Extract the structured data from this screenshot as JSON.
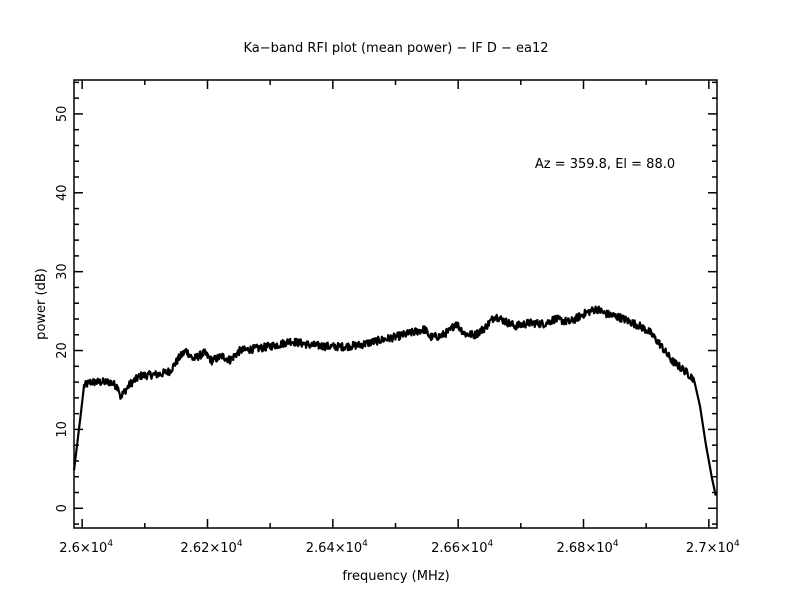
{
  "chart_data": {
    "type": "line",
    "title": "Ka−band RFI plot (mean power) − IF D − ea12",
    "xlabel": "frequency (MHz)",
    "ylabel": "power (dB)",
    "annotation": "Az = 359.8, El = 88.0",
    "xlim": [
      25987,
      27013
    ],
    "ylim": [
      -2.5,
      54.3
    ],
    "grid": false,
    "x_ticks": [
      {
        "value": 26000,
        "mant": "2.6",
        "exp": "4"
      },
      {
        "value": 26200,
        "mant": "2.62",
        "exp": "4"
      },
      {
        "value": 26400,
        "mant": "2.64",
        "exp": "4"
      },
      {
        "value": 26600,
        "mant": "2.66",
        "exp": "4"
      },
      {
        "value": 26800,
        "mant": "2.68",
        "exp": "4"
      },
      {
        "value": 27000,
        "mant": "2.7",
        "exp": "4"
      }
    ],
    "y_ticks": [
      {
        "value": 0,
        "label": "0"
      },
      {
        "value": 10,
        "label": "10"
      },
      {
        "value": 20,
        "label": "20"
      },
      {
        "value": 30,
        "label": "30"
      },
      {
        "value": 40,
        "label": "40"
      },
      {
        "value": 50,
        "label": "50"
      }
    ],
    "series": [
      {
        "name": "mean power",
        "color": "#000000",
        "x": [
          25987,
          25997,
          26003,
          26013,
          26045,
          26057,
          26061,
          26077,
          26093,
          26124,
          26140,
          26156,
          26166,
          26177,
          26195,
          26207,
          26223,
          26236,
          26252,
          26284,
          26316,
          26332,
          26364,
          26396,
          26419,
          26443,
          26475,
          26499,
          26523,
          26547,
          26555,
          26571,
          26587,
          26596,
          26611,
          26627,
          26643,
          26659,
          26675,
          26691,
          26714,
          26738,
          26754,
          26778,
          26802,
          26821,
          26834,
          26858,
          26890,
          26906,
          26922,
          26941,
          26962,
          26976,
          26986,
          26995,
          27005,
          27011
        ],
        "y": [
          4.8,
          11.4,
          15.5,
          16.0,
          16.0,
          15.4,
          14.1,
          15.8,
          16.8,
          17.0,
          17.4,
          19.2,
          20.0,
          18.9,
          19.7,
          18.7,
          19.3,
          18.8,
          20.0,
          20.3,
          20.8,
          21.2,
          20.7,
          20.5,
          20.5,
          20.7,
          21.3,
          21.7,
          22.2,
          22.7,
          21.7,
          21.8,
          22.5,
          23.5,
          22.1,
          22.0,
          22.9,
          24.4,
          23.7,
          23.1,
          23.5,
          23.4,
          24.0,
          23.6,
          24.7,
          25.3,
          24.7,
          24.2,
          23.1,
          22.3,
          20.8,
          18.7,
          17.4,
          16.4,
          12.9,
          8.2,
          3.8,
          1.6
        ]
      }
    ]
  }
}
